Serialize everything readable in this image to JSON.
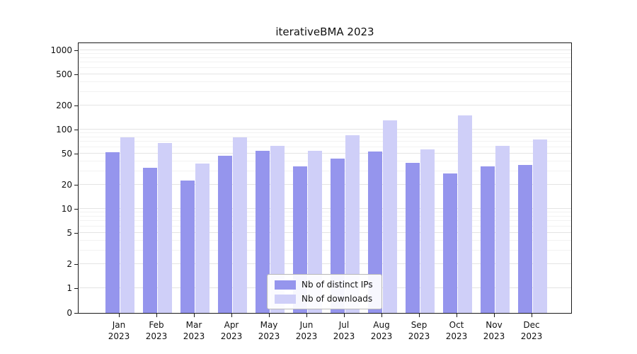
{
  "chart_data": {
    "type": "bar",
    "title": "iterativeBMA 2023",
    "categories": [
      "Jan",
      "Feb",
      "Mar",
      "Apr",
      "May",
      "Jun",
      "Jul",
      "Aug",
      "Sep",
      "Oct",
      "Nov",
      "Dec"
    ],
    "category_sublabel": "2023",
    "series": [
      {
        "name": "Nb of distinct IPs",
        "color": "#9595ed",
        "values": [
          52,
          33,
          23,
          47,
          54,
          34,
          43,
          53,
          38,
          28,
          34,
          36
        ]
      },
      {
        "name": "Nb of downloads",
        "color": "#cfcff8",
        "values": [
          80,
          68,
          37,
          80,
          62,
          54,
          85,
          130,
          56,
          150,
          62,
          75
        ]
      }
    ],
    "y_ticks": [
      0,
      1,
      2,
      5,
      10,
      20,
      50,
      100,
      200,
      500,
      1000
    ],
    "y_minor_ticks": [
      3,
      4,
      6,
      7,
      8,
      9,
      30,
      40,
      60,
      70,
      80,
      90,
      300,
      400,
      600,
      700,
      800,
      900
    ],
    "ylim": [
      0,
      1000
    ],
    "y_scale": "log",
    "grid": true,
    "legend_position": "lower center",
    "xlabel": "",
    "ylabel": ""
  }
}
